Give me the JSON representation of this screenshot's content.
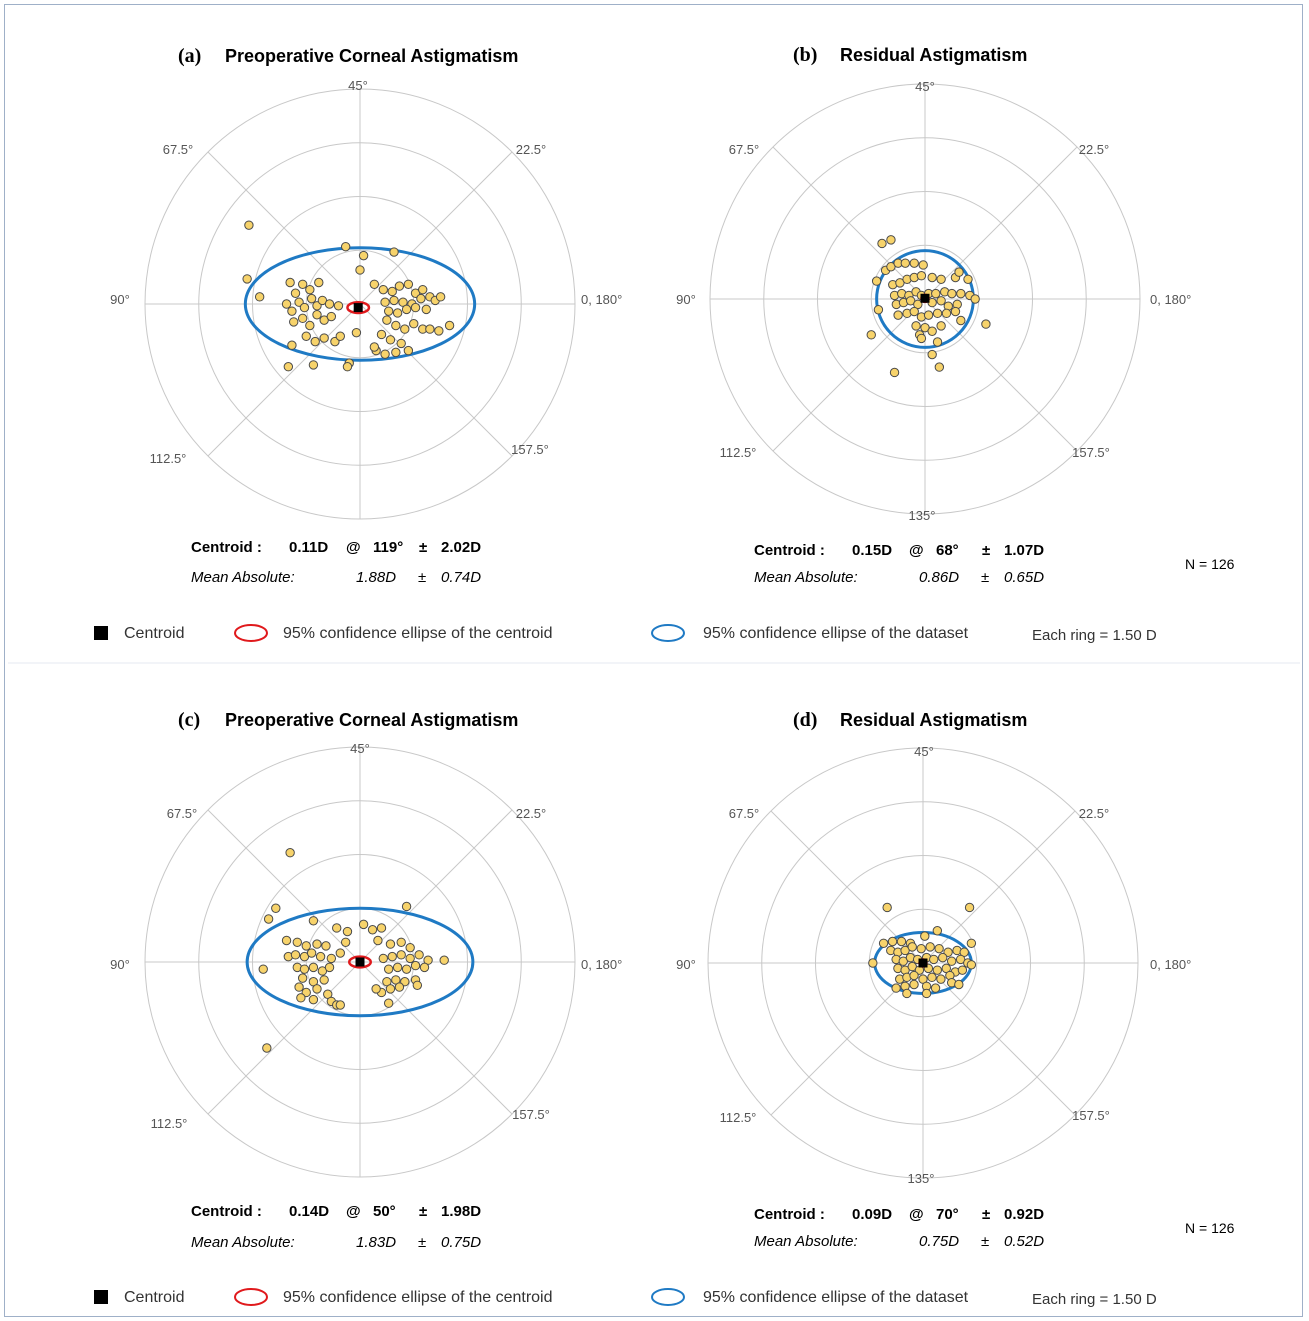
{
  "legend": {
    "centroid": "Centroid",
    "ci_centroid": "95% confidence ellipse of  the centroid",
    "ci_dataset": "95% confidence ellipse of the dataset",
    "ring": "Each ring = 1.50 D",
    "colors": {
      "centroid": "#000000",
      "ci_centroid": "#e0191c",
      "ci_dataset": "#1f7ac4",
      "point_fill": "#f7d36b",
      "point_stroke": "#4a4a4a"
    }
  },
  "n_label": "N =  126",
  "charts": [
    {
      "id": "a",
      "panel_label": "(a)",
      "title": "Preoperative Corneal Astigmatism",
      "angles": {
        "top": "45°",
        "left": "90°",
        "right": "0, 180°",
        "bottom": "",
        "upper_left": "67.5°",
        "upper_right": "22.5°",
        "lower_left": "112.5°",
        "lower_right": "157.5°"
      },
      "centroid_row": {
        "label": "Centroid :",
        "value": "0.11D",
        "at": "@",
        "angle": "119°",
        "pm": "±",
        "sd": "2.02D"
      },
      "mean_row": {
        "label": "Mean Absolute:",
        "value": "1.88D",
        "pm": "±",
        "sd": "0.74D"
      },
      "n": ""
    },
    {
      "id": "b",
      "panel_label": "(b)",
      "title": "Residual Astigmatism",
      "angles": {
        "top": "45°",
        "left": "90°",
        "right": "0, 180°",
        "bottom": "135°",
        "upper_left": "67.5°",
        "upper_right": "22.5°",
        "lower_left": "112.5°",
        "lower_right": "157.5°"
      },
      "centroid_row": {
        "label": "Centroid :",
        "value": "0.15D",
        "at": "@",
        "angle": "68°",
        "pm": "±",
        "sd": "1.07D"
      },
      "mean_row": {
        "label": "Mean Absolute:",
        "value": "0.86D",
        "pm": "±",
        "sd": "0.65D"
      },
      "n": "N =  126"
    },
    {
      "id": "c",
      "panel_label": "(c)",
      "title": "Preoperative Corneal Astigmatism",
      "angles": {
        "top": "45°",
        "left": "90°",
        "right": "0, 180°",
        "bottom": "",
        "upper_left": "67.5°",
        "upper_right": "22.5°",
        "lower_left": "112.5°",
        "lower_right": "157.5°"
      },
      "centroid_row": {
        "label": "Centroid :",
        "value": "0.14D",
        "at": "@",
        "angle": "50°",
        "pm": "±",
        "sd": "1.98D"
      },
      "mean_row": {
        "label": "Mean Absolute:",
        "value": "1.83D",
        "pm": "±",
        "sd": "0.75D"
      },
      "n": ""
    },
    {
      "id": "d",
      "panel_label": "(d)",
      "title": "Residual Astigmatism",
      "angles": {
        "top": "45°",
        "left": "90°",
        "right": "0, 180°",
        "bottom": "135°",
        "upper_left": "67.5°",
        "upper_right": "22.5°",
        "lower_left": "112.5°",
        "lower_right": "157.5°"
      },
      "centroid_row": {
        "label": "Centroid :",
        "value": "0.09D",
        "at": "@",
        "angle": "70°",
        "pm": "±",
        "sd": "0.92D"
      },
      "mean_row": {
        "label": "Mean Absolute:",
        "value": "0.75D",
        "pm": "±",
        "sd": "0.52D"
      },
      "n": "N =  126"
    }
  ],
  "chart_data": [
    {
      "type": "scatter",
      "title": "Preoperative Corneal Astigmatism",
      "ring_step": 1.5,
      "rings": 4,
      "centroid": [
        -0.05,
        -0.1
      ],
      "ci_centroid": {
        "rx": 0.3,
        "ry": 0.15
      },
      "ci_dataset": {
        "rx": 3.2,
        "ry": 1.57
      },
      "points": [
        [
          -3.1,
          2.2
        ],
        [
          -3.15,
          0.7
        ],
        [
          -2.8,
          0.2
        ],
        [
          -1.95,
          0.6
        ],
        [
          -1.8,
          0.3
        ],
        [
          -1.6,
          0.55
        ],
        [
          -1.4,
          0.4
        ],
        [
          -1.15,
          0.6
        ],
        [
          -2.05,
          0.0
        ],
        [
          -1.9,
          -0.2
        ],
        [
          -1.7,
          0.05
        ],
        [
          -1.55,
          -0.1
        ],
        [
          -1.35,
          0.15
        ],
        [
          -1.2,
          -0.05
        ],
        [
          -1.05,
          0.1
        ],
        [
          -0.85,
          0.0
        ],
        [
          -0.6,
          -0.05
        ],
        [
          -1.6,
          -0.4
        ],
        [
          -1.4,
          -0.6
        ],
        [
          -1.2,
          -0.3
        ],
        [
          -1.0,
          -0.45
        ],
        [
          -0.8,
          -0.35
        ],
        [
          -1.85,
          -0.5
        ],
        [
          -1.5,
          -0.9
        ],
        [
          -1.25,
          -1.05
        ],
        [
          -1.0,
          -0.95
        ],
        [
          -0.7,
          -1.05
        ],
        [
          -0.55,
          -0.9
        ],
        [
          -1.9,
          -1.15
        ],
        [
          -2.0,
          -1.75
        ],
        [
          -1.3,
          -1.7
        ],
        [
          -0.3,
          -1.65
        ],
        [
          -0.1,
          -0.8
        ],
        [
          0.0,
          0.95
        ],
        [
          -0.4,
          1.6
        ],
        [
          0.1,
          1.35
        ],
        [
          0.95,
          1.45
        ],
        [
          0.4,
          0.55
        ],
        [
          0.65,
          0.4
        ],
        [
          0.9,
          0.35
        ],
        [
          1.1,
          0.5
        ],
        [
          1.35,
          0.55
        ],
        [
          1.55,
          0.3
        ],
        [
          1.75,
          0.4
        ],
        [
          1.95,
          0.2
        ],
        [
          0.7,
          0.05
        ],
        [
          0.95,
          0.1
        ],
        [
          1.2,
          0.05
        ],
        [
          1.45,
          0.0
        ],
        [
          1.7,
          0.15
        ],
        [
          2.1,
          0.1
        ],
        [
          0.8,
          -0.2
        ],
        [
          1.05,
          -0.25
        ],
        [
          1.3,
          -0.15
        ],
        [
          1.55,
          -0.1
        ],
        [
          1.85,
          -0.15
        ],
        [
          0.75,
          -0.45
        ],
        [
          1.0,
          -0.6
        ],
        [
          1.25,
          -0.7
        ],
        [
          1.5,
          -0.55
        ],
        [
          1.75,
          -0.7
        ],
        [
          0.6,
          -0.85
        ],
        [
          0.85,
          -1.0
        ],
        [
          1.15,
          -1.1
        ],
        [
          1.35,
          -1.3
        ],
        [
          0.45,
          -1.3
        ],
        [
          0.7,
          -1.4
        ],
        [
          1.0,
          -1.35
        ],
        [
          1.95,
          -0.7
        ],
        [
          2.2,
          -0.75
        ],
        [
          2.5,
          -0.6
        ],
        [
          2.25,
          0.2
        ],
        [
          0.4,
          -1.2
        ],
        [
          -0.35,
          -1.75
        ]
      ]
    },
    {
      "type": "scatter",
      "title": "Residual Astigmatism",
      "ring_step": 1.5,
      "rings": 4,
      "centroid": [
        0.0,
        0.02
      ],
      "ci_centroid": {
        "rx": 0.1,
        "ry": 0.1
      },
      "ci_dataset": {
        "rx": 1.35,
        "ry": 1.35
      },
      "points": [
        [
          -1.2,
          1.55
        ],
        [
          -0.95,
          1.65
        ],
        [
          -1.35,
          0.5
        ],
        [
          -1.3,
          -0.3
        ],
        [
          -1.5,
          -1.0
        ],
        [
          -0.85,
          -2.05
        ],
        [
          -1.1,
          0.8
        ],
        [
          -0.95,
          0.9
        ],
        [
          -0.75,
          1.0
        ],
        [
          -0.55,
          1.0
        ],
        [
          -0.3,
          1.0
        ],
        [
          -0.05,
          0.95
        ],
        [
          -0.9,
          0.4
        ],
        [
          -0.7,
          0.45
        ],
        [
          -0.5,
          0.55
        ],
        [
          -0.3,
          0.6
        ],
        [
          -0.1,
          0.65
        ],
        [
          0.2,
          0.6
        ],
        [
          0.45,
          0.55
        ],
        [
          0.85,
          0.6
        ],
        [
          0.95,
          0.75
        ],
        [
          1.2,
          0.55
        ],
        [
          -0.85,
          0.1
        ],
        [
          -0.65,
          0.15
        ],
        [
          -0.45,
          0.1
        ],
        [
          -0.25,
          0.2
        ],
        [
          -0.1,
          0.1
        ],
        [
          0.1,
          0.15
        ],
        [
          0.3,
          0.15
        ],
        [
          0.55,
          0.2
        ],
        [
          0.75,
          0.15
        ],
        [
          1.0,
          0.15
        ],
        [
          1.25,
          0.1
        ],
        [
          1.4,
          0.0
        ],
        [
          -0.8,
          -0.15
        ],
        [
          -0.6,
          -0.1
        ],
        [
          -0.4,
          -0.05
        ],
        [
          -0.2,
          -0.15
        ],
        [
          0.2,
          -0.1
        ],
        [
          0.45,
          -0.05
        ],
        [
          0.65,
          -0.2
        ],
        [
          0.9,
          -0.15
        ],
        [
          -0.75,
          -0.45
        ],
        [
          -0.5,
          -0.4
        ],
        [
          -0.3,
          -0.35
        ],
        [
          -0.1,
          -0.5
        ],
        [
          0.1,
          -0.45
        ],
        [
          0.35,
          -0.4
        ],
        [
          0.6,
          -0.4
        ],
        [
          0.85,
          -0.35
        ],
        [
          -0.25,
          -0.75
        ],
        [
          0.0,
          -0.8
        ],
        [
          0.2,
          -0.9
        ],
        [
          0.45,
          -0.75
        ],
        [
          1.0,
          -0.6
        ],
        [
          1.7,
          -0.7
        ],
        [
          -0.15,
          -1.0
        ],
        [
          -0.1,
          -1.1
        ],
        [
          0.35,
          -1.2
        ],
        [
          0.2,
          -1.55
        ],
        [
          0.4,
          -1.9
        ]
      ]
    },
    {
      "type": "scatter",
      "title": "Preoperative Corneal Astigmatism",
      "ring_step": 1.5,
      "rings": 4,
      "centroid": [
        0.0,
        0.0
      ],
      "ci_centroid": {
        "rx": 0.3,
        "ry": 0.15
      },
      "ci_dataset": {
        "rx": 3.15,
        "ry": 1.5
      },
      "points": [
        [
          -1.95,
          3.05
        ],
        [
          -2.35,
          1.5
        ],
        [
          -2.55,
          1.2
        ],
        [
          -2.7,
          -0.2
        ],
        [
          -2.6,
          -2.4
        ],
        [
          -1.3,
          1.15
        ],
        [
          -0.65,
          0.95
        ],
        [
          -0.35,
          0.85
        ],
        [
          0.1,
          1.05
        ],
        [
          0.35,
          0.9
        ],
        [
          0.6,
          0.95
        ],
        [
          1.3,
          1.55
        ],
        [
          -2.05,
          0.6
        ],
        [
          -1.75,
          0.55
        ],
        [
          -1.5,
          0.45
        ],
        [
          -1.2,
          0.5
        ],
        [
          -0.95,
          0.45
        ],
        [
          -0.4,
          0.55
        ],
        [
          0.5,
          0.6
        ],
        [
          0.85,
          0.5
        ],
        [
          1.15,
          0.55
        ],
        [
          1.4,
          0.4
        ],
        [
          -2.0,
          0.15
        ],
        [
          -1.8,
          0.2
        ],
        [
          -1.55,
          0.15
        ],
        [
          -1.35,
          0.25
        ],
        [
          -1.1,
          0.15
        ],
        [
          -0.8,
          0.1
        ],
        [
          -0.55,
          0.25
        ],
        [
          0.65,
          0.1
        ],
        [
          0.9,
          0.15
        ],
        [
          1.15,
          0.2
        ],
        [
          1.4,
          0.1
        ],
        [
          1.65,
          0.2
        ],
        [
          1.9,
          0.05
        ],
        [
          2.35,
          0.05
        ],
        [
          -1.75,
          -0.15
        ],
        [
          -1.55,
          -0.2
        ],
        [
          -1.3,
          -0.15
        ],
        [
          -1.05,
          -0.25
        ],
        [
          -0.85,
          -0.15
        ],
        [
          0.8,
          -0.2
        ],
        [
          1.05,
          -0.15
        ],
        [
          1.3,
          -0.2
        ],
        [
          1.55,
          -0.1
        ],
        [
          1.8,
          -0.15
        ],
        [
          -1.6,
          -0.45
        ],
        [
          -1.3,
          -0.55
        ],
        [
          -1.0,
          -0.5
        ],
        [
          0.75,
          -0.55
        ],
        [
          1.0,
          -0.5
        ],
        [
          1.25,
          -0.55
        ],
        [
          1.55,
          -0.5
        ],
        [
          -1.7,
          -0.7
        ],
        [
          -1.5,
          -0.85
        ],
        [
          -1.2,
          -0.75
        ],
        [
          -0.9,
          -0.9
        ],
        [
          0.6,
          -0.85
        ],
        [
          0.85,
          -0.75
        ],
        [
          1.1,
          -0.7
        ],
        [
          1.6,
          -0.65
        ],
        [
          -1.65,
          -1.0
        ],
        [
          -1.3,
          -1.05
        ],
        [
          -0.8,
          -1.1
        ],
        [
          -0.65,
          -1.2
        ],
        [
          0.8,
          -1.15
        ],
        [
          0.45,
          -0.75
        ],
        [
          -0.55,
          -1.2
        ]
      ]
    },
    {
      "type": "scatter",
      "title": "Residual Astigmatism",
      "ring_step": 1.5,
      "rings": 4,
      "centroid": [
        0.0,
        0.0
      ],
      "ci_centroid": {
        "rx": 0.1,
        "ry": 0.1
      },
      "ci_dataset": {
        "rx": 1.35,
        "ry": 0.85
      },
      "points": [
        [
          -1.0,
          1.55
        ],
        [
          -1.4,
          0.0
        ],
        [
          -1.1,
          0.55
        ],
        [
          -0.85,
          0.6
        ],
        [
          -0.6,
          0.6
        ],
        [
          -0.35,
          0.55
        ],
        [
          0.05,
          0.75
        ],
        [
          0.4,
          0.9
        ],
        [
          1.3,
          1.55
        ],
        [
          1.35,
          0.55
        ],
        [
          -0.9,
          0.35
        ],
        [
          -0.7,
          0.3
        ],
        [
          -0.5,
          0.35
        ],
        [
          -0.3,
          0.45
        ],
        [
          -0.05,
          0.4
        ],
        [
          0.2,
          0.45
        ],
        [
          0.45,
          0.4
        ],
        [
          0.7,
          0.3
        ],
        [
          0.95,
          0.35
        ],
        [
          1.15,
          0.3
        ],
        [
          -0.75,
          0.1
        ],
        [
          -0.55,
          0.05
        ],
        [
          -0.35,
          0.15
        ],
        [
          -0.15,
          0.1
        ],
        [
          0.1,
          0.15
        ],
        [
          0.3,
          0.1
        ],
        [
          0.55,
          0.15
        ],
        [
          0.8,
          0.05
        ],
        [
          1.05,
          0.1
        ],
        [
          1.25,
          0.0
        ],
        [
          1.35,
          -0.05
        ],
        [
          -0.7,
          -0.15
        ],
        [
          -0.5,
          -0.2
        ],
        [
          -0.3,
          -0.1
        ],
        [
          -0.1,
          -0.2
        ],
        [
          0.15,
          -0.15
        ],
        [
          0.4,
          -0.2
        ],
        [
          0.65,
          -0.15
        ],
        [
          0.9,
          -0.25
        ],
        [
          1.1,
          -0.2
        ],
        [
          -0.65,
          -0.45
        ],
        [
          -0.45,
          -0.4
        ],
        [
          -0.25,
          -0.35
        ],
        [
          0.0,
          -0.45
        ],
        [
          0.25,
          -0.4
        ],
        [
          0.5,
          -0.45
        ],
        [
          0.75,
          -0.35
        ],
        [
          -0.5,
          -0.65
        ],
        [
          -0.25,
          -0.6
        ],
        [
          0.1,
          -0.65
        ],
        [
          0.35,
          -0.7
        ],
        [
          0.8,
          -0.55
        ],
        [
          1.0,
          -0.6
        ],
        [
          -0.75,
          -0.7
        ],
        [
          -0.45,
          -0.85
        ],
        [
          0.1,
          -0.85
        ]
      ]
    }
  ]
}
